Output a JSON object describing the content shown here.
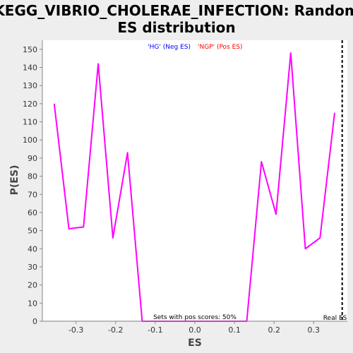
{
  "chart_data": {
    "type": "line",
    "title_line1": "KEGG_VIBRIO_CHOLERAE_INFECTION: Random",
    "title_line2": "ES distribution",
    "xlabel": "ES",
    "ylabel": "P(ES)",
    "xlim": [
      -0.385,
      0.385
    ],
    "ylim": [
      0,
      155
    ],
    "x_ticks": [
      -0.3,
      -0.2,
      -0.1,
      0.0,
      0.1,
      0.2,
      0.3
    ],
    "x_tick_labels": [
      "-0.3",
      "-0.2",
      "-0.1",
      "0.0",
      "0.1",
      "0.2",
      "0.3"
    ],
    "y_ticks": [
      0,
      10,
      20,
      30,
      40,
      50,
      60,
      70,
      80,
      90,
      100,
      110,
      120,
      130,
      140,
      150
    ],
    "y_tick_labels": [
      "0",
      "10",
      "20",
      "30",
      "40",
      "50",
      "60",
      "70",
      "80",
      "90",
      "100",
      "110",
      "120",
      "130",
      "140",
      "150"
    ],
    "grid": false,
    "legend": [
      {
        "label": "'HG' (Neg ES)",
        "color": "#0000ff"
      },
      {
        "label": "'NGP' (Pos ES)",
        "color": "#ff0000"
      }
    ],
    "legend_position": "top-center",
    "series": [
      {
        "color": "#ff00ff",
        "x": [
          -0.355,
          -0.318,
          -0.281,
          -0.244,
          -0.207,
          -0.17,
          -0.133,
          -0.096,
          -0.059,
          -0.022,
          0.015,
          0.052,
          0.089,
          0.131,
          0.168,
          0.205,
          0.242,
          0.279,
          0.316,
          0.353
        ],
        "y": [
          120,
          51,
          52,
          142,
          46,
          93,
          0,
          0,
          0,
          0,
          0,
          0,
          0,
          0,
          88,
          59,
          148,
          40,
          46,
          115
        ]
      }
    ],
    "real_es": {
      "x": 0.372,
      "label": "Real ES"
    },
    "annotation": "Sets with pos scores: 50%"
  },
  "colors": {
    "background": "#eeeeee",
    "plot_background": "#ffffff",
    "line": "#ff00ff"
  }
}
